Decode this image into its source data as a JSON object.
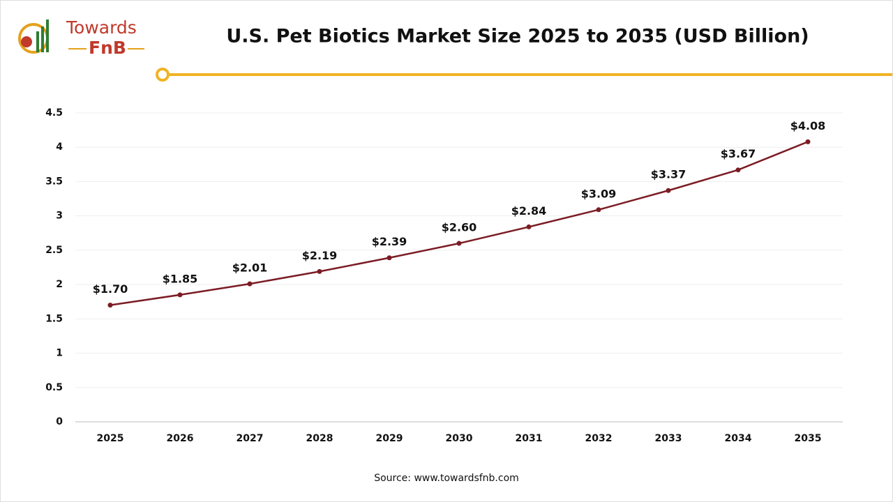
{
  "brand": {
    "line1": "Towards",
    "line2": "FnB"
  },
  "chart_data": {
    "type": "line",
    "title": "U.S. Pet Biotics Market Size 2025 to 2035 (USD Billion)",
    "categories": [
      "2025",
      "2026",
      "2027",
      "2028",
      "2029",
      "2030",
      "2031",
      "2032",
      "2033",
      "2034",
      "2035"
    ],
    "series": [
      {
        "name": "U.S. Pet Biotics Market Size",
        "color": "#7b1c24",
        "values": [
          1.7,
          1.85,
          2.01,
          2.19,
          2.39,
          2.6,
          2.84,
          3.09,
          3.37,
          3.67,
          4.08
        ],
        "value_labels": [
          "$1.70",
          "$1.85",
          "$2.01",
          "$2.19",
          "$2.39",
          "$2.60",
          "$2.84",
          "$3.09",
          "$3.37",
          "$3.67",
          "$4.08"
        ]
      }
    ],
    "ylim": [
      0,
      4.5
    ],
    "yticks": [
      0,
      0.5,
      1,
      1.5,
      2,
      2.5,
      3,
      3.5,
      4,
      4.5
    ],
    "grid": true,
    "source": "Source: www.towardsfnb.com"
  }
}
